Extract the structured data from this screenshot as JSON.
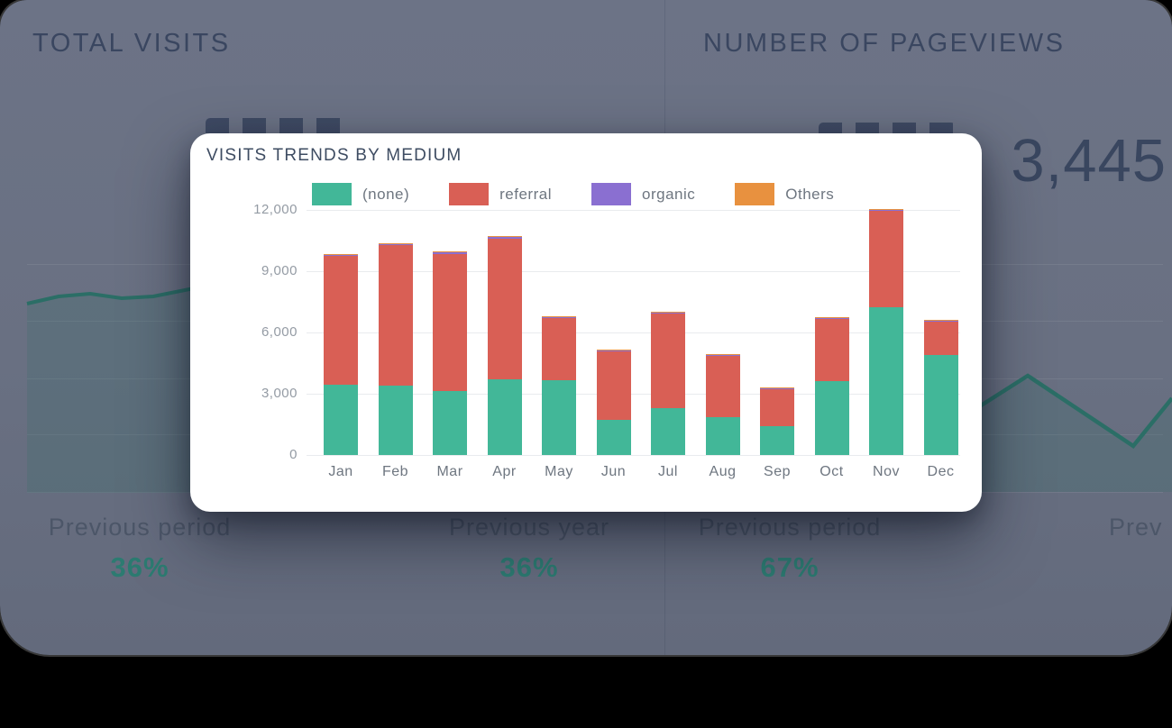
{
  "background": {
    "left_card": {
      "title": "TOTAL VISITS",
      "comparisons": [
        {
          "label": "Previous period",
          "value": "36%"
        },
        {
          "label": "Previous year",
          "value": "36%"
        }
      ]
    },
    "right_card": {
      "title": "NUMBER OF PAGEVIEWS",
      "visible_value": "3,445",
      "comparisons": [
        {
          "label": "Previous period",
          "value": "67%"
        },
        {
          "label": "Prev",
          "value": ""
        }
      ]
    }
  },
  "modal": {
    "title": "VISITS TRENDS BY MEDIUM"
  },
  "chart_data": {
    "type": "bar",
    "stacked": true,
    "title": "VISITS TRENDS BY MEDIUM",
    "categories": [
      "Jan",
      "Feb",
      "Mar",
      "Apr",
      "May",
      "Jun",
      "Jul",
      "Aug",
      "Sep",
      "Oct",
      "Nov",
      "Dec"
    ],
    "series": [
      {
        "name": "(none)",
        "color": "#42b798",
        "values": [
          3450,
          3400,
          3150,
          3700,
          3650,
          1700,
          2300,
          1850,
          1400,
          3600,
          7250,
          4900
        ]
      },
      {
        "name": "referral",
        "color": "#d95f55",
        "values": [
          6310,
          6860,
          6710,
          6910,
          3060,
          3360,
          4610,
          3010,
          1810,
          3060,
          4710,
          1610
        ]
      },
      {
        "name": "organic",
        "color": "#8a6fd1",
        "values": [
          60,
          60,
          60,
          60,
          60,
          60,
          60,
          60,
          60,
          60,
          60,
          60
        ]
      },
      {
        "name": "Others",
        "color": "#e8913f",
        "values": [
          30,
          30,
          30,
          30,
          30,
          30,
          30,
          30,
          30,
          30,
          30,
          30
        ]
      }
    ],
    "y_ticks": [
      "12,000",
      "9,000",
      "6,000",
      "3,000",
      "0"
    ],
    "ylim": [
      0,
      12000
    ],
    "grid": true,
    "legend_position": "top",
    "xlabel": "",
    "ylabel": ""
  },
  "colors": {
    "modal_bg": "#ffffff",
    "backdrop": "#697082",
    "accent_teal_text": "#2c7b71",
    "bg_line": "#2b6e66",
    "title_text": "#3e4c62"
  }
}
